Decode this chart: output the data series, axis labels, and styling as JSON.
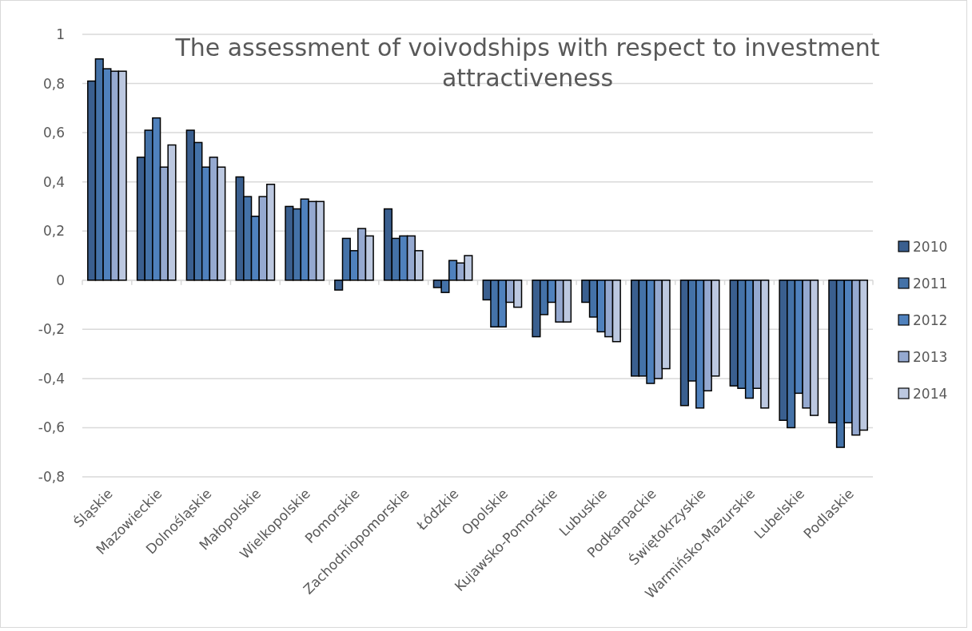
{
  "chart_data": {
    "type": "bar",
    "title": "The assessment of voivodships with respect to investment attractiveness",
    "categories": [
      "Śląskie",
      "Mazowieckie",
      "Dolnośląskie",
      "Małopolskie",
      "Wielkopolskie",
      "Pomorskie",
      "Zachodniopomorskie",
      "Łódzkie",
      "Opolskie",
      "Kujawsko-Pomorskie",
      "Lubuskie",
      "Podkarpackie",
      "Świętokrzyskie",
      "Warmińsko-Mazurskie",
      "Lubelskie",
      "Podlaskie"
    ],
    "series": [
      {
        "name": "2010",
        "color": "#3a5f8f",
        "values": [
          0.81,
          0.5,
          0.61,
          0.42,
          0.3,
          -0.04,
          0.29,
          -0.03,
          -0.08,
          -0.23,
          -0.09,
          -0.39,
          -0.51,
          -0.43,
          -0.57,
          -0.58
        ]
      },
      {
        "name": "2011",
        "color": "#4472a8",
        "values": [
          0.9,
          0.61,
          0.56,
          0.34,
          0.29,
          0.17,
          0.17,
          -0.05,
          -0.19,
          -0.14,
          -0.15,
          -0.39,
          -0.41,
          -0.44,
          -0.6,
          -0.68
        ]
      },
      {
        "name": "2012",
        "color": "#4f81bd",
        "values": [
          0.86,
          0.66,
          0.46,
          0.26,
          0.33,
          0.12,
          0.18,
          0.08,
          -0.19,
          -0.09,
          -0.21,
          -0.42,
          -0.52,
          -0.48,
          -0.46,
          -0.58
        ]
      },
      {
        "name": "2013",
        "color": "#95a9d0",
        "values": [
          0.85,
          0.46,
          0.5,
          0.34,
          0.32,
          0.21,
          0.18,
          0.07,
          -0.09,
          -0.17,
          -0.23,
          -0.4,
          -0.45,
          -0.44,
          -0.52,
          -0.63
        ]
      },
      {
        "name": "2014",
        "color": "#bcc8e0",
        "values": [
          0.85,
          0.55,
          0.46,
          0.39,
          0.32,
          0.18,
          0.12,
          0.1,
          -0.11,
          -0.17,
          -0.25,
          -0.36,
          -0.39,
          -0.52,
          -0.55,
          -0.61
        ]
      }
    ],
    "ylim": [
      -0.8,
      1
    ],
    "yticks": [
      {
        "value": -0.8,
        "label": "-0,8"
      },
      {
        "value": -0.6,
        "label": "-0,6"
      },
      {
        "value": -0.4,
        "label": "-0,4"
      },
      {
        "value": -0.2,
        "label": "-0,2"
      },
      0,
      {
        "value": 0.2,
        "label": "0,2"
      },
      {
        "value": 0.4,
        "label": "0,4"
      },
      {
        "value": 0.6,
        "label": "0,6"
      },
      {
        "value": 0.8,
        "label": "0,8"
      },
      1
    ],
    "grid": "y",
    "legend": "right"
  }
}
